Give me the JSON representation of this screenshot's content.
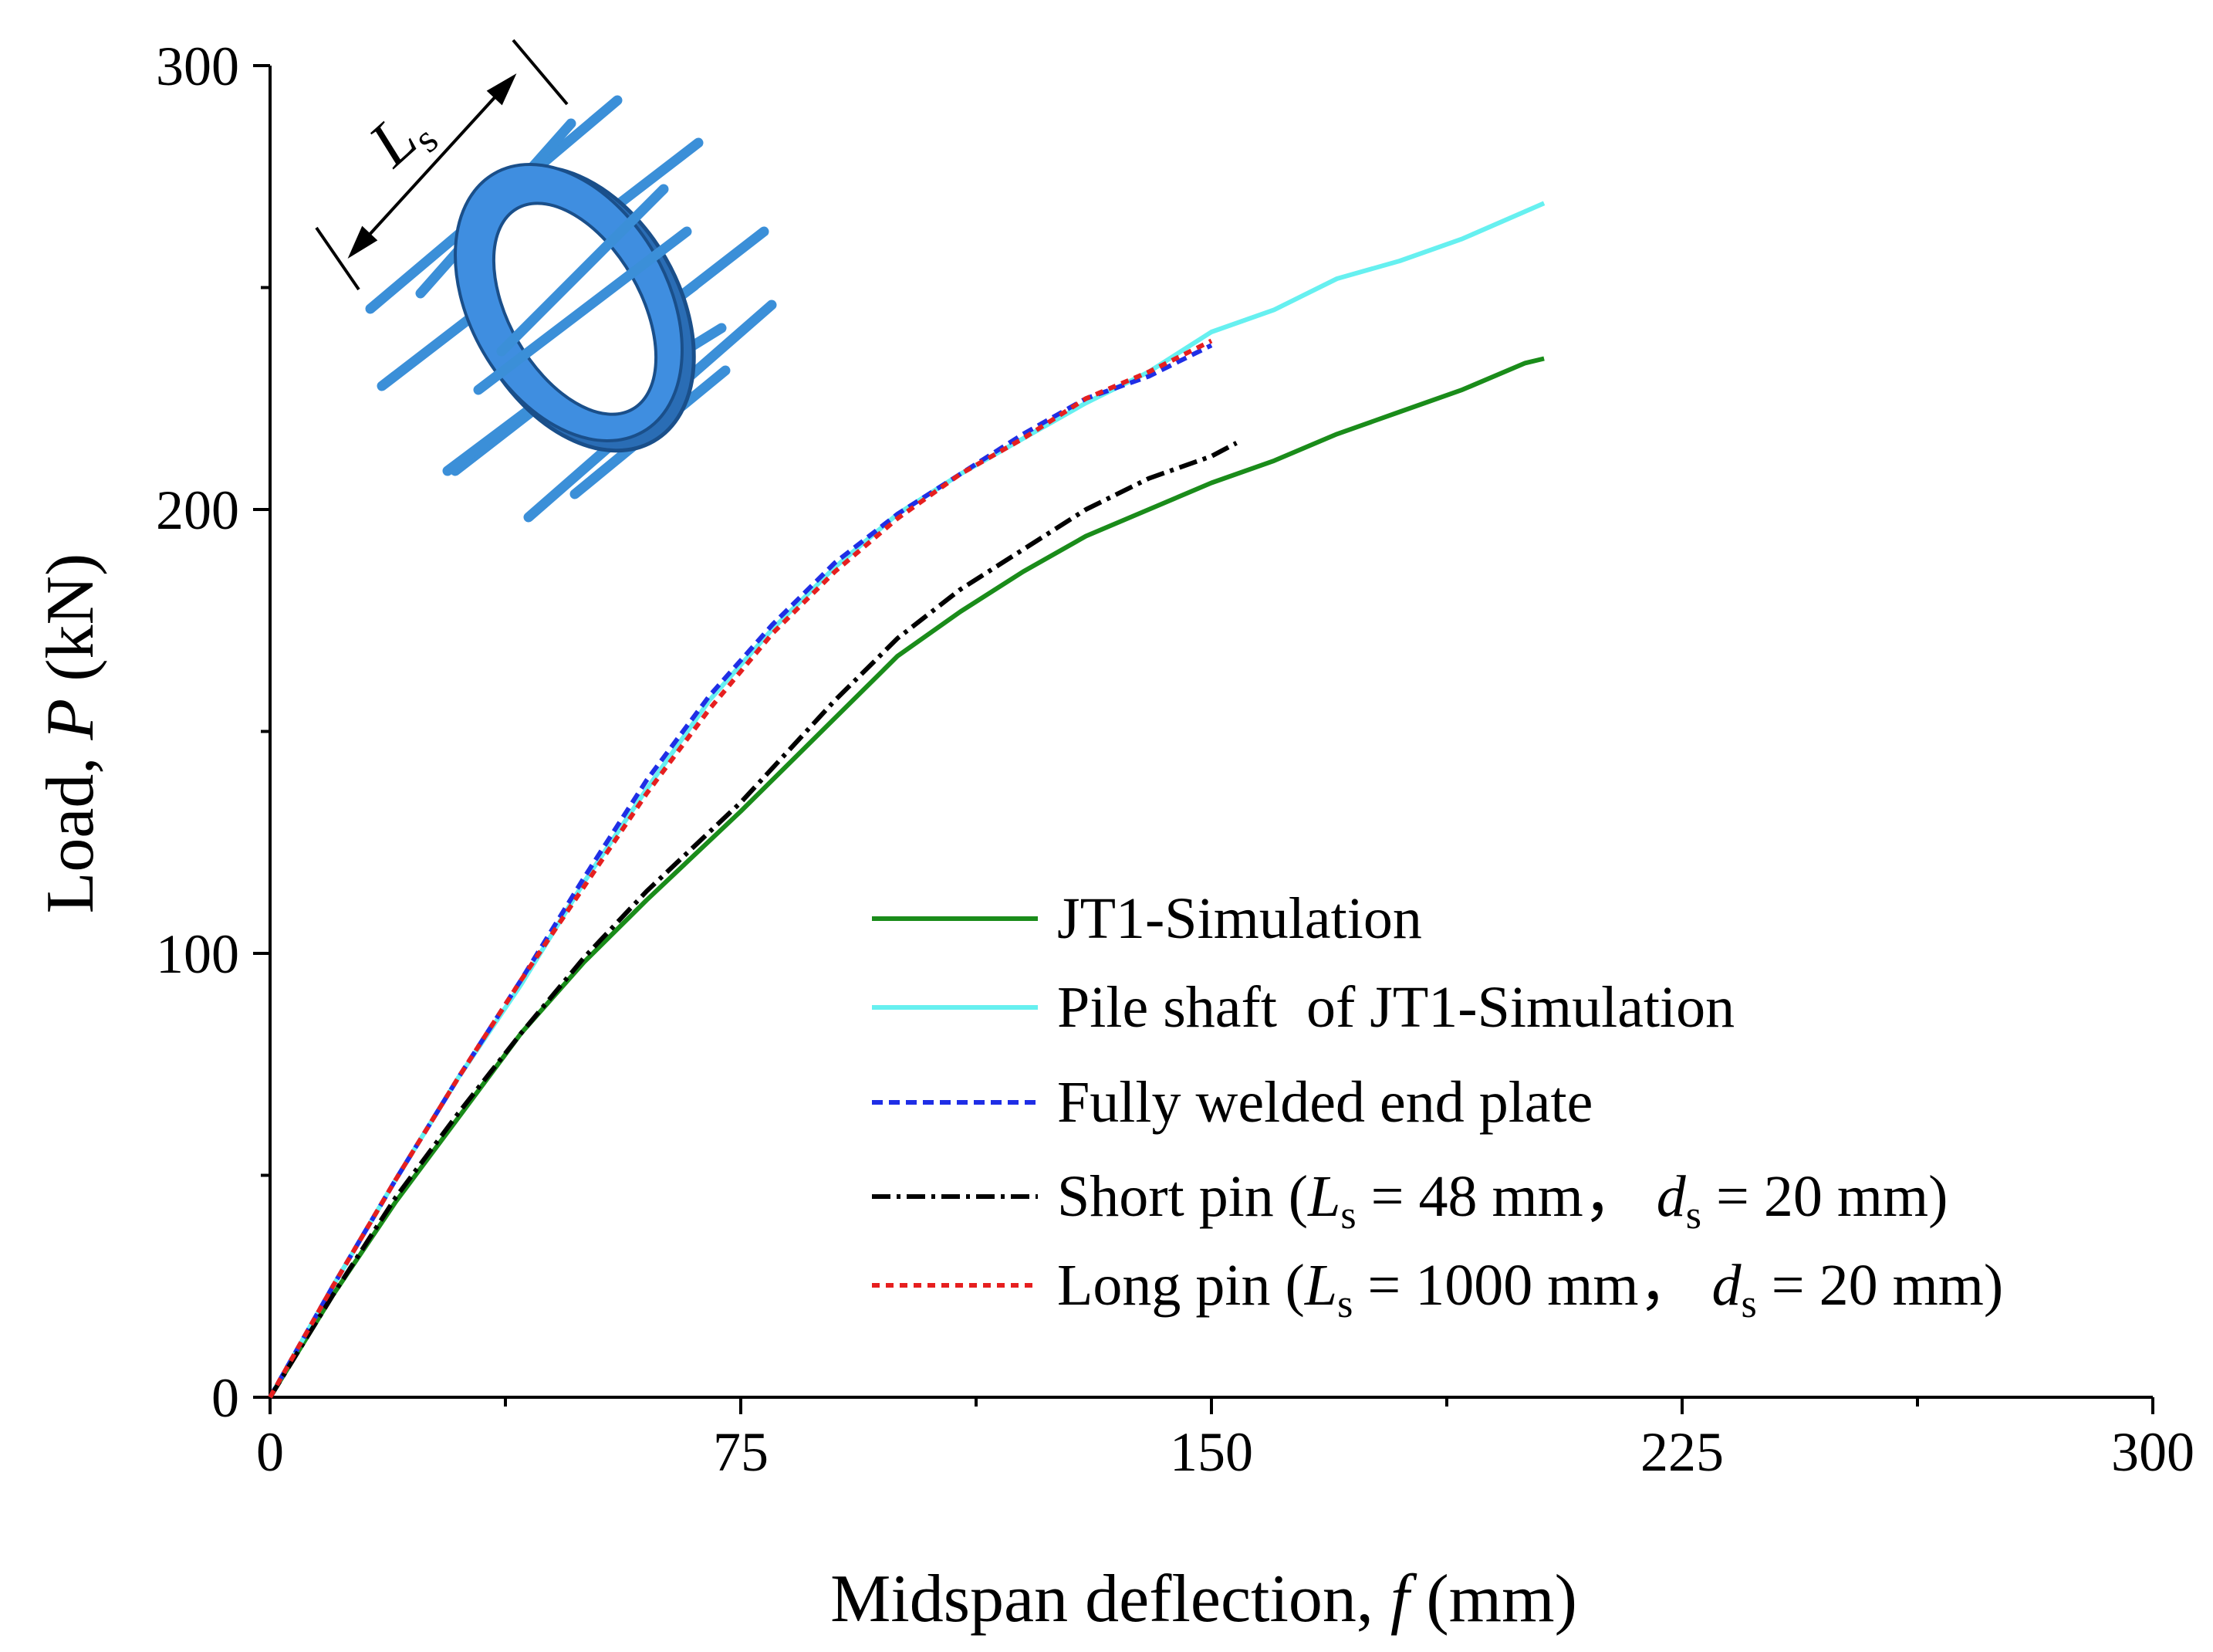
{
  "chart_data": {
    "type": "line",
    "title": "",
    "xlabel": {
      "prefix": "Midspan deflection, ",
      "symbol": "f",
      "unit": " (mm)"
    },
    "ylabel": {
      "prefix": "Load, ",
      "symbol": "P",
      "unit": " (kN)"
    },
    "xlim": [
      0,
      300
    ],
    "ylim": [
      0,
      300
    ],
    "x_ticks": [
      0,
      75,
      150,
      225,
      300
    ],
    "y_ticks": [
      0,
      100,
      200,
      300
    ],
    "x_tick_labels": [
      "0",
      "75",
      "150",
      "225",
      "300"
    ],
    "y_tick_labels": [
      "0",
      "100",
      "200",
      "300"
    ],
    "grid": false,
    "legend_position": "bottom-right",
    "inset": {
      "label_symbol": "L",
      "label_sub": "s",
      "description": "pin connection ring with pins"
    },
    "series": [
      {
        "name": "JT1-Simulation",
        "color": "#1a8c1a",
        "style": "solid",
        "x": [
          0,
          10,
          20,
          30,
          40,
          50,
          60,
          75,
          90,
          100,
          110,
          120,
          130,
          140,
          150,
          160,
          170,
          180,
          190,
          200,
          203
        ],
        "y": [
          0,
          23,
          44,
          63,
          82,
          98,
          112,
          132,
          153,
          167,
          177,
          186,
          194,
          200,
          206,
          211,
          217,
          222,
          227,
          233,
          234
        ]
      },
      {
        "name": "Pile shaft  of JT1-Simulation",
        "color": "#66f0f0",
        "style": "solid",
        "x": [
          0,
          10,
          20,
          30,
          40,
          50,
          60,
          70,
          80,
          90,
          100,
          110,
          120,
          130,
          140,
          150,
          160,
          170,
          180,
          190,
          203
        ],
        "y": [
          0,
          25,
          49,
          72,
          93,
          116,
          137,
          157,
          173,
          187,
          199,
          208,
          216,
          224,
          231,
          240,
          245,
          252,
          256,
          261,
          269
        ]
      },
      {
        "name": "Fully welded end plate",
        "color": "#1f2ee6",
        "style": "dashed",
        "x": [
          0,
          10,
          20,
          30,
          40,
          50,
          60,
          70,
          80,
          90,
          100,
          110,
          120,
          130,
          140,
          150
        ],
        "y": [
          0,
          25,
          49,
          72,
          94,
          117,
          139,
          158,
          174,
          188,
          199,
          208,
          217,
          225,
          230,
          237
        ]
      },
      {
        "name": "Short pin",
        "color": "#000000",
        "style": "dashdot",
        "x": [
          0,
          10,
          20,
          30,
          40,
          50,
          60,
          75,
          90,
          100,
          110,
          120,
          130,
          140,
          150,
          154
        ],
        "y": [
          0,
          23,
          45,
          64,
          82,
          99,
          114,
          134,
          157,
          171,
          182,
          191,
          200,
          207,
          212,
          215
        ]
      },
      {
        "name": "Long pin",
        "color": "#e61f1f",
        "style": "dotted",
        "x": [
          0,
          10,
          20,
          30,
          40,
          50,
          60,
          70,
          80,
          90,
          100,
          110,
          120,
          130,
          140,
          150
        ],
        "y": [
          0,
          25,
          49,
          72,
          94,
          115,
          136,
          155,
          172,
          186,
          198,
          208,
          216,
          225,
          231,
          238
        ]
      }
    ],
    "legend": [
      {
        "text": "JT1-Simulation"
      },
      {
        "text": "Pile shaft  of JT1-Simulation"
      },
      {
        "text": "Fully welded end plate"
      },
      {
        "p1": "Short pin (",
        "L": "L",
        "s1": "s",
        "p2": " = 48 mm， ",
        "d": "d",
        "s2": "s",
        "p3": " = 20 mm)"
      },
      {
        "p1": "Long pin (",
        "L": "L",
        "s1": "s",
        "p2": " = 1000 mm， ",
        "d": "d",
        "s2": "s",
        "p3": " = 20 mm)"
      }
    ]
  }
}
